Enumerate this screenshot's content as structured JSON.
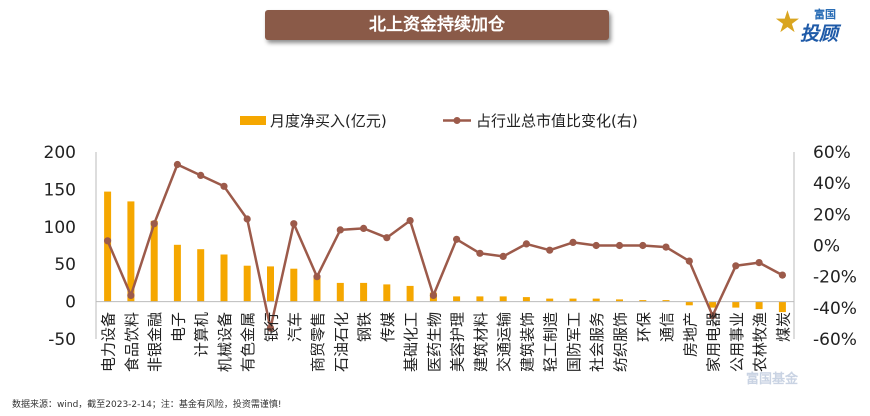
{
  "title": "北上资金持续加仓",
  "brand": {
    "line1": "富国",
    "line2": "投顾"
  },
  "watermark": "富国基金",
  "footer": "数据来源：wind，截至2023-2-14；注：基金有风险，投资需谨慎!",
  "colors": {
    "bar": "#f5a700",
    "line": "#9c5a4a",
    "title_bg": "#8a5a48"
  },
  "chart_data": {
    "type": "bar+line",
    "legend": {
      "placement": "top-center",
      "bar_label": "月度净买入(亿元)",
      "line_label": "占行业总市值比变化(右)"
    },
    "categories": [
      "电力设备",
      "食品饮料",
      "非银金融",
      "电子",
      "计算机",
      "机械设备",
      "有色金属",
      "银行",
      "汽车",
      "商贸零售",
      "石油石化",
      "钢铁",
      "传媒",
      "基础化工",
      "医药生物",
      "美容护理",
      "建筑材料",
      "交通运输",
      "建筑装饰",
      "轻工制造",
      "国防军工",
      "社会服务",
      "纺织服饰",
      "环保",
      "通信",
      "房地产",
      "家用电器",
      "公用事业",
      "农林牧渔",
      "煤炭"
    ],
    "bar_values": [
      147,
      134,
      108,
      76,
      70,
      63,
      48,
      47,
      44,
      33,
      25,
      25,
      23,
      21,
      12,
      7,
      7,
      7,
      6,
      4,
      4,
      4,
      3,
      2,
      2,
      -5,
      -8,
      -8,
      -10,
      -14
    ],
    "line_values": [
      3,
      -32,
      14,
      52,
      45,
      38,
      17,
      -53,
      14,
      -20,
      10,
      11,
      5,
      16,
      -32,
      4,
      -5,
      -7,
      1,
      -3,
      2,
      0,
      0,
      0,
      -1,
      -10,
      -45,
      -13,
      -11,
      -19
    ],
    "y_left": {
      "min": -50,
      "max": 200,
      "ticks": [
        200,
        150,
        100,
        50,
        0,
        -50
      ]
    },
    "y_right": {
      "min": -60,
      "max": 60,
      "ticks": [
        "60%",
        "40%",
        "20%",
        "0%",
        "-20%",
        "-40%",
        "-60%"
      ]
    },
    "grid": false
  }
}
